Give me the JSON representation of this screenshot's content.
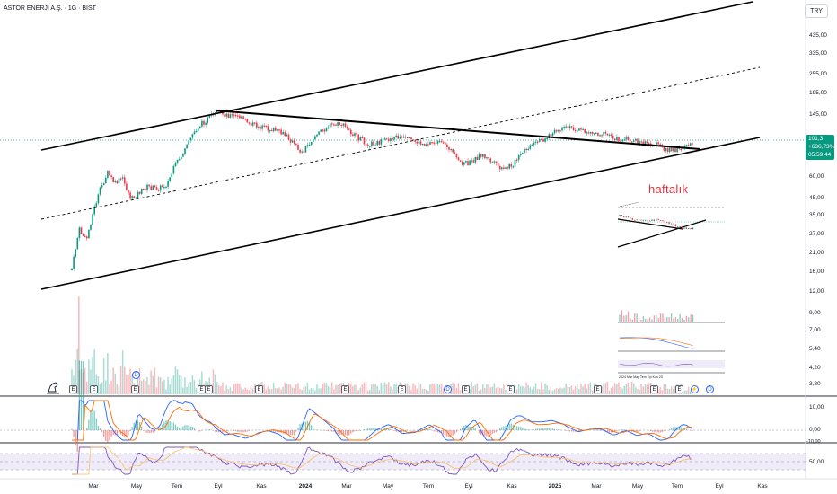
{
  "header": {
    "title": "ASTOR ENERJİ A.Ş. · 1G · BIST",
    "currency_button": "TRY"
  },
  "price_tag": {
    "price": "101,3",
    "change": "+636,73%",
    "countdown": "05:59:44",
    "color": "#089981"
  },
  "annotation": {
    "text": "haftalık",
    "color": "#e0343f"
  },
  "price_scale": [
    "435,00",
    "335,00",
    "255,00",
    "195,00",
    "145,00",
    "60,00",
    "45,00",
    "35,00",
    "27,00",
    "21,00",
    "16,00",
    "12,00",
    "9,00",
    "7,00",
    "5,40",
    "4,20",
    "3,30"
  ],
  "macd_scale": [
    "10,00",
    "0,00",
    "-10,00"
  ],
  "rsi_scale": [
    "50,00"
  ],
  "time_axis": [
    "Mar",
    "May",
    "Tem",
    "Eyl",
    "Kas",
    "2024",
    "Mar",
    "May",
    "Tem",
    "Eyl",
    "Kas",
    "2025",
    "Mar",
    "May",
    "Tem",
    "Eyl",
    "Kas"
  ],
  "events": [
    "E",
    "E",
    "E",
    "E",
    "E",
    "E",
    "E",
    "E",
    "E",
    "E",
    "E",
    "E",
    "E"
  ],
  "dividends": [
    "D",
    "D",
    "D"
  ],
  "colors": {
    "up": "#089981",
    "down": "#f23645",
    "macd": "#2962ff",
    "signal": "#ff6d00",
    "rsi": "#7e57c2"
  }
}
